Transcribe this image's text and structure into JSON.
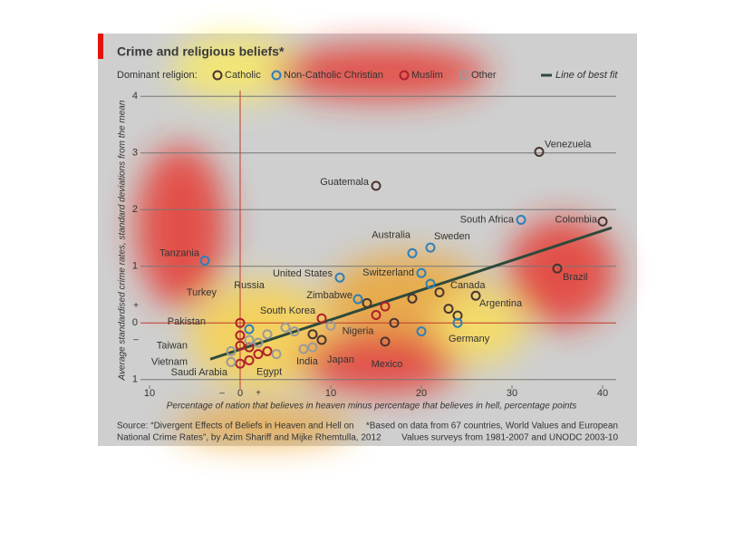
{
  "chart_data": {
    "type": "scatter",
    "title": "Crime and religious beliefs*",
    "legend_title": "Dominant religion:",
    "x_label": "Percentage of nation that believes in heaven minus percentage that believes in hell, percentage points",
    "y_label": "Average standardised crime rates, standard deviations from the mean",
    "source": [
      "Source: “Divergent Effects of Beliefs in Heaven and Hell on",
      "National Crime Rates”, by Azim Shariff and Mijke Rhemtulla, 2012"
    ],
    "footnote": [
      "*Based on data from 67 countries, World Values and European",
      "Values surveys from 1981-2007 and UNODC 2003-10"
    ],
    "signs": [
      "–",
      "+",
      "+",
      "–"
    ],
    "xlim": [
      -11,
      41.5
    ],
    "ylim": [
      -1.1,
      4.1
    ],
    "xticks": [
      {
        "value": -10,
        "label": "10"
      },
      0,
      10,
      20,
      30,
      40
    ],
    "yticks": [
      {
        "value": -1,
        "label": "1"
      },
      0,
      1,
      2,
      3,
      4
    ],
    "grid": true,
    "series": [
      {
        "name": "Catholic",
        "color": "#4a3530",
        "x": [
          33,
          15,
          40,
          35,
          26,
          16,
          22,
          24,
          23,
          19,
          14,
          9,
          8,
          17
        ],
        "values": [
          3.02,
          2.42,
          1.79,
          0.96,
          0.48,
          -0.33,
          0.54,
          0.13,
          0.25,
          0.43,
          0.35,
          -0.3,
          -0.2,
          0
        ],
        "labels": [
          "Venezuela",
          "Guatemala",
          "Colombia",
          "Brazil",
          "Argentina",
          "Mexico",
          null,
          null,
          null,
          null,
          null,
          null,
          null,
          null
        ]
      },
      {
        "name": "Non-Catholic Christian",
        "color": "#2e7fb8",
        "x": [
          31,
          21,
          20,
          11,
          19,
          24,
          1,
          -3.9,
          21,
          13,
          20
        ],
        "values": [
          1.82,
          1.33,
          0.88,
          0.8,
          1.23,
          0,
          -0.11,
          1.1,
          0.69,
          0.42,
          -0.15
        ],
        "labels": [
          "South Africa",
          "Sweden",
          "Switzerland",
          "United States",
          "Australia",
          "Germany",
          "Russia",
          "Tanzania",
          "Canada",
          "Zimbabwe",
          null
        ]
      },
      {
        "name": "Muslim",
        "color": "#b0202a",
        "x": [
          0,
          0,
          1,
          0,
          15,
          0,
          1,
          2,
          3,
          9,
          16
        ],
        "values": [
          0,
          -0.22,
          -0.66,
          -0.72,
          0.14,
          -0.4,
          -0.43,
          -0.55,
          -0.5,
          0.08,
          0.29
        ],
        "labels": [
          "Turkey",
          "Pakistan",
          "Egypt",
          "Saudi Arabia",
          "Nigeria",
          null,
          null,
          null,
          null,
          null,
          null
        ]
      },
      {
        "name": "Other",
        "color": "#9a9a9a",
        "x": [
          -1,
          -1,
          7,
          8,
          5,
          2,
          3,
          4,
          6,
          10,
          1
        ],
        "values": [
          -0.5,
          -0.69,
          -0.46,
          -0.43,
          -0.08,
          -0.35,
          -0.2,
          -0.55,
          -0.15,
          -0.05,
          -0.3
        ],
        "labels": [
          "Taiwan",
          "Vietnam",
          "India",
          "Japan",
          "South Korea",
          null,
          null,
          null,
          null,
          null,
          null
        ]
      }
    ],
    "fit": {
      "name": "Line of best fit",
      "color": "#2d4a3a",
      "x": [
        -3.3,
        41
      ],
      "y": [
        -0.64,
        1.68
      ]
    }
  }
}
